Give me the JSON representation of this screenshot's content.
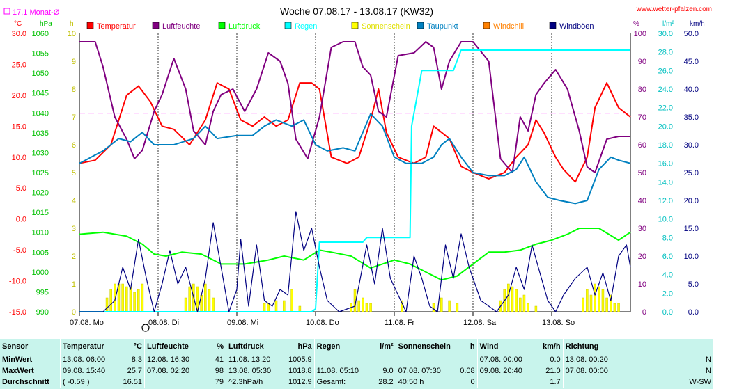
{
  "header": {
    "title": "Woche 07.08.17 - 13.08.17 (KW32)",
    "site": "www.wetter-pfalzen.com",
    "monthavg_label": "17.1 Monat-Ø"
  },
  "legend": [
    {
      "name": "Temperatur",
      "color": "#ff0000"
    },
    {
      "name": "Luftfeuchte",
      "color": "#800080"
    },
    {
      "name": "Luftdruck",
      "color": "#00ff00"
    },
    {
      "name": "Regen",
      "color": "#00ffff"
    },
    {
      "name": "Sonnenschein",
      "color": "#ffff00"
    },
    {
      "name": "Taupunkt",
      "color": "#0080c0"
    },
    {
      "name": "Windchill",
      "color": "#ff8000"
    },
    {
      "name": "Windböen",
      "color": "#000080"
    }
  ],
  "chart_data": {
    "type": "line",
    "x": [
      "07.08. Mo",
      "08.08. Di",
      "09.08. Mi",
      "10.08. Do",
      "11.08. Fr",
      "12.08. Sa",
      "13.08. So"
    ],
    "month_avg_temperature": 17.1,
    "axes": {
      "temp": {
        "unit": "°C",
        "color": "#ff0000",
        "ticks": [
          "30.0",
          "25.0",
          "20.0",
          "15.0",
          "10.0",
          "5.0",
          "0.0",
          "-5.0",
          "-10.0",
          "-15.0"
        ]
      },
      "pressure": {
        "unit": "hPa",
        "color": "#00c000",
        "ticks": [
          "1060",
          "1055",
          "1050",
          "1045",
          "1040",
          "1035",
          "1030",
          "1025",
          "1020",
          "1015",
          "1010",
          "1005",
          "1000",
          "995",
          "990"
        ]
      },
      "sun": {
        "unit": "h",
        "color": "#c0c000",
        "ticks": [
          "10",
          "9",
          "8",
          "7",
          "6",
          "5",
          "4",
          "3",
          "2",
          "1",
          "0"
        ]
      },
      "humidity": {
        "unit": "%",
        "color": "#800080",
        "ticks": [
          "100",
          "90",
          "80",
          "70",
          "60",
          "50",
          "40",
          "30",
          "20",
          "10",
          "0"
        ]
      },
      "rain": {
        "unit": "l/m²",
        "color": "#00c0c0",
        "ticks": [
          "30.0",
          "28.0",
          "26.0",
          "24.0",
          "22.0",
          "20.0",
          "18.0",
          "16.0",
          "14.0",
          "12.0",
          "10.0",
          "8.0",
          "6.0",
          "4.0",
          "2.0",
          "0.0"
        ]
      },
      "wind": {
        "unit": "km/h",
        "color": "#000080",
        "ticks": [
          "50.0",
          "45.0",
          "40.0",
          "35.0",
          "30.0",
          "25.0",
          "20.0",
          "15.0",
          "10.0",
          "5.0",
          "0.0"
        ]
      }
    },
    "series": [
      {
        "name": "Temperatur",
        "unit": "°C",
        "color": "#ff0000",
        "x": [
          0,
          0.2,
          0.4,
          0.6,
          0.75,
          0.9,
          1.05,
          1.2,
          1.4,
          1.6,
          1.75,
          1.9,
          2.05,
          2.2,
          2.35,
          2.5,
          2.65,
          2.8,
          2.95,
          3.05,
          3.2,
          3.4,
          3.55,
          3.7,
          3.8,
          3.9,
          4.05,
          4.25,
          4.4,
          4.5,
          4.6,
          4.7,
          4.85,
          5.0,
          5.2,
          5.4,
          5.55,
          5.7,
          5.8,
          5.9,
          6.05,
          6.15,
          6.3,
          6.45,
          6.55,
          6.7,
          6.85,
          7.0
        ],
        "values": [
          9,
          9.5,
          12,
          20,
          21.5,
          19,
          15,
          14.5,
          12,
          16,
          22,
          21,
          16,
          15,
          16.5,
          15,
          16,
          22,
          22,
          21,
          10,
          9,
          10,
          16,
          21,
          14,
          10,
          9,
          10,
          15,
          14,
          13,
          8.5,
          7.5,
          6.5,
          7.5,
          10,
          12,
          16,
          14,
          10,
          8,
          6,
          10,
          18,
          22,
          18,
          16.5
        ]
      },
      {
        "name": "Luftfeuchte",
        "unit": "%",
        "color": "#800080",
        "x": [
          0,
          0.2,
          0.3,
          0.45,
          0.6,
          0.7,
          0.8,
          0.95,
          1.05,
          1.2,
          1.35,
          1.45,
          1.6,
          1.7,
          1.8,
          1.95,
          2.1,
          2.25,
          2.4,
          2.55,
          2.65,
          2.75,
          2.9,
          3.05,
          3.2,
          3.35,
          3.5,
          3.6,
          3.7,
          3.8,
          3.9,
          4.05,
          4.25,
          4.4,
          4.5,
          4.6,
          4.7,
          4.85,
          5.0,
          5.2,
          5.35,
          5.5,
          5.6,
          5.7,
          5.8,
          5.9,
          6.05,
          6.2,
          6.35,
          6.45,
          6.55,
          6.7,
          6.85,
          7.0
        ],
        "values": [
          97,
          97,
          88,
          70,
          62,
          55,
          58,
          72,
          78,
          91,
          80,
          65,
          60,
          72,
          78,
          80,
          72,
          80,
          93,
          90,
          82,
          62,
          55,
          70,
          95,
          97,
          97,
          88,
          85,
          72,
          70,
          92,
          93,
          97,
          95,
          80,
          90,
          97,
          97,
          90,
          55,
          50,
          70,
          65,
          78,
          82,
          87,
          80,
          65,
          52,
          50,
          62,
          63,
          63
        ]
      },
      {
        "name": "Luftdruck",
        "unit": "hPa",
        "color": "#00ff00",
        "x": [
          0,
          0.3,
          0.6,
          0.8,
          0.95,
          1.1,
          1.3,
          1.55,
          1.8,
          2.1,
          2.4,
          2.6,
          2.85,
          3.05,
          3.2,
          3.45,
          3.7,
          3.85,
          4.0,
          4.2,
          4.4,
          4.6,
          4.8,
          5.0,
          5.2,
          5.4,
          5.6,
          5.8,
          6.0,
          6.2,
          6.35,
          6.6,
          6.85,
          7.0
        ],
        "values": [
          1009.5,
          1010,
          1009,
          1007,
          1004.5,
          1004,
          1005,
          1004.5,
          1002,
          1002,
          1003,
          1004,
          1003,
          1005.5,
          1005,
          1004,
          1001,
          1002,
          1003,
          1002,
          1000,
          998,
          999,
          1002,
          1005,
          1005,
          1005.5,
          1007,
          1008,
          1009.5,
          1011,
          1011,
          1008,
          1010
        ]
      },
      {
        "name": "Regen",
        "unit": "l/m²",
        "color": "#00ffff",
        "x": [
          0,
          2.35,
          2.95,
          3.0,
          3.05,
          3.6,
          3.65,
          4.2,
          4.22,
          4.35,
          4.45,
          4.55,
          4.75,
          4.85,
          5.0,
          7.0
        ],
        "values": [
          0,
          0,
          0,
          0.3,
          7.5,
          7.5,
          8,
          8,
          20,
          26,
          26,
          26,
          26,
          28.2,
          28.2,
          28.2
        ]
      },
      {
        "name": "Taupunkt",
        "unit": "°C",
        "color": "#0080c0",
        "x": [
          0,
          0.15,
          0.3,
          0.5,
          0.65,
          0.8,
          0.95,
          1.2,
          1.45,
          1.6,
          1.75,
          2.0,
          2.2,
          2.35,
          2.5,
          2.7,
          2.85,
          3.0,
          3.15,
          3.35,
          3.5,
          3.7,
          3.85,
          4.0,
          4.15,
          4.35,
          4.5,
          4.6,
          4.7,
          4.85,
          5.0,
          5.2,
          5.4,
          5.55,
          5.65,
          5.8,
          5.95,
          6.1,
          6.3,
          6.45,
          6.6,
          6.75,
          6.85,
          7.0
        ],
        "values": [
          9,
          10,
          11,
          13,
          12.5,
          14,
          12,
          12,
          13,
          15,
          13,
          13.5,
          13.5,
          15,
          16,
          15,
          16,
          12,
          11,
          11.5,
          11,
          17,
          15,
          10,
          9,
          9,
          10,
          12,
          13,
          10,
          7.5,
          7,
          7,
          8,
          10,
          6,
          3.5,
          3,
          2.5,
          3,
          8,
          10,
          9.5,
          9
        ]
      },
      {
        "name": "Windböen",
        "unit": "km/h",
        "color": "#000080",
        "x": [
          0,
          0.3,
          0.45,
          0.55,
          0.65,
          0.75,
          0.85,
          0.95,
          1.05,
          1.15,
          1.25,
          1.35,
          1.5,
          1.6,
          1.7,
          1.8,
          1.9,
          2.0,
          2.05,
          2.15,
          2.25,
          2.35,
          2.45,
          2.55,
          2.65,
          2.75,
          2.85,
          2.95,
          3.05,
          3.15,
          3.3,
          3.5,
          3.65,
          3.75,
          3.85,
          3.95,
          4.05,
          4.15,
          4.25,
          4.35,
          4.45,
          4.55,
          4.65,
          4.75,
          4.85,
          4.95,
          5.1,
          5.3,
          5.45,
          5.55,
          5.65,
          5.75,
          5.85,
          5.95,
          6.05,
          6.15,
          6.3,
          6.45,
          6.55,
          6.65,
          6.75,
          6.85,
          6.95,
          7.0
        ],
        "values": [
          0,
          0,
          2,
          8,
          4,
          13,
          6,
          0,
          5,
          11,
          5,
          8,
          0,
          6,
          16,
          8,
          0,
          4,
          13,
          1,
          12,
          2,
          1,
          4,
          3,
          18,
          11,
          15,
          8,
          2,
          0,
          1,
          12,
          5,
          15,
          6,
          3,
          0,
          10,
          6,
          1,
          0,
          12,
          6,
          14,
          8,
          2,
          0,
          3,
          8,
          4,
          12,
          7,
          2,
          0,
          3,
          6,
          8,
          3,
          7,
          2,
          10,
          12,
          8
        ]
      },
      {
        "name": "Sonnenschein",
        "unit": "h",
        "color": "#ffff00",
        "x": [
          0.35,
          0.4,
          0.45,
          0.5,
          0.55,
          0.6,
          0.65,
          0.7,
          0.75,
          0.8,
          1.35,
          1.4,
          1.45,
          1.5,
          1.55,
          1.6,
          1.65,
          1.7,
          2.35,
          2.4,
          2.5,
          2.6,
          2.7,
          2.8,
          3.45,
          3.5,
          3.55,
          3.6,
          3.65,
          3.7,
          4.1,
          4.5,
          4.6,
          4.7,
          4.8,
          5.35,
          5.4,
          5.45,
          5.5,
          5.55,
          5.6,
          5.65,
          5.7,
          5.8,
          6.4,
          6.45,
          6.5,
          6.55,
          6.6,
          6.65,
          6.7,
          6.75,
          6.8,
          6.85
        ],
        "values": [
          0.5,
          0.8,
          1,
          1,
          1,
          0.9,
          0.9,
          0.7,
          0.8,
          1,
          0.5,
          0.9,
          1,
          0.9,
          0.6,
          1,
          0.8,
          0.5,
          0.3,
          0.3,
          0.4,
          0.4,
          0.8,
          0.2,
          0.3,
          0.8,
          0.4,
          0.5,
          0.3,
          0.3,
          0.4,
          0.3,
          0.5,
          0.4,
          0.3,
          0.4,
          0.8,
          1,
          0.9,
          0.8,
          0.5,
          0.6,
          0.3,
          0.2,
          0.5,
          0.8,
          0.6,
          1,
          0.9,
          0.8,
          0.5,
          0.6,
          0.3,
          0.3
        ]
      }
    ]
  },
  "stats": {
    "headers": [
      {
        "label": "Sensor",
        "unit": ""
      },
      {
        "label": "Temperatur",
        "unit": "°C"
      },
      {
        "label": "Luftfeuchte",
        "unit": "%"
      },
      {
        "label": "Luftdruck",
        "unit": "hPa"
      },
      {
        "label": "Regen",
        "unit": "l/m²"
      },
      {
        "label": "Sonnenschein",
        "unit": "h"
      },
      {
        "label": "Wind",
        "unit": "km/h"
      },
      {
        "label": "Richtung",
        "unit": ""
      }
    ],
    "rows": [
      {
        "label": "MinWert",
        "cells": [
          [
            "13.08.  06:00",
            "8.3"
          ],
          [
            "12.08.  16:30",
            "41"
          ],
          [
            "11.08.  13:20",
            "1005.9"
          ],
          [
            "",
            ""
          ],
          [
            "",
            ""
          ],
          [
            "07.08.  00:00",
            "0.0"
          ],
          [
            "13.08.  00:20",
            "N"
          ]
        ]
      },
      {
        "label": "MaxWert",
        "cells": [
          [
            "09.08.  15:40",
            "25.7"
          ],
          [
            "07.08.  02:20",
            "98"
          ],
          [
            "13.08.  05:30",
            "1018.8"
          ],
          [
            "11.08.  05:10",
            "9.0"
          ],
          [
            "07.08.  07:30",
            "0.08"
          ],
          [
            "09.08.  20:40",
            "21.0"
          ],
          [
            "07.08.  00:00",
            "N"
          ]
        ]
      },
      {
        "label": "Durchschnitt",
        "cells": [
          [
            "( -0.59 )",
            "16.51"
          ],
          [
            "",
            "79"
          ],
          [
            "^2.3hPa/h",
            "1012.9"
          ],
          [
            "Gesamt:",
            "28.2"
          ],
          [
            "40:50 h",
            "0"
          ],
          [
            "",
            "1.7"
          ],
          [
            "",
            "W-SW"
          ]
        ]
      }
    ]
  }
}
